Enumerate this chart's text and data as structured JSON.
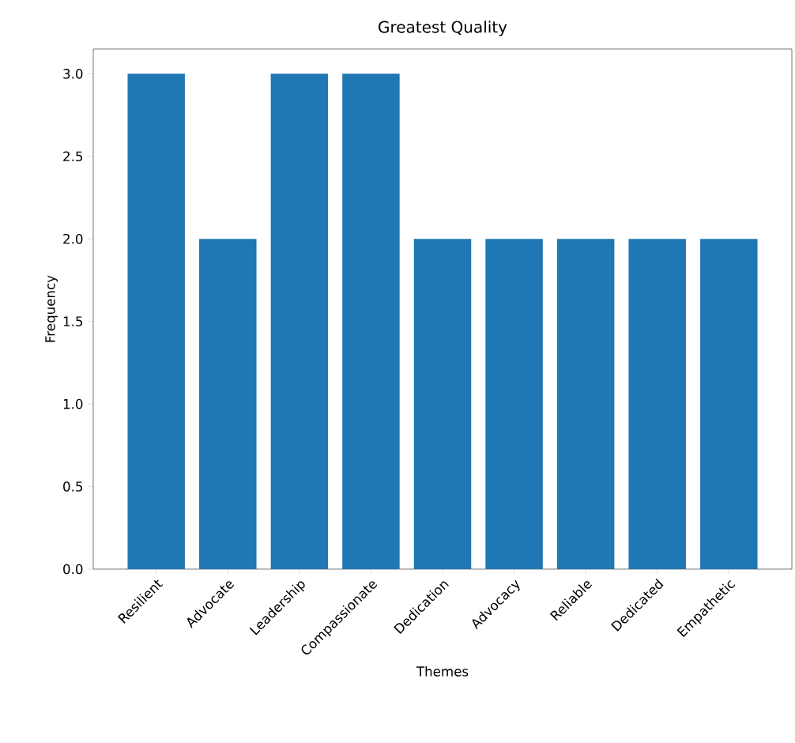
{
  "chart_data": {
    "type": "bar",
    "title": "Greatest Quality",
    "xlabel": "Themes",
    "ylabel": "Frequency",
    "categories": [
      "Resilient",
      "Advocate",
      "Leadership",
      "Compassionate",
      "Dedication",
      "Advocacy",
      "Reliable",
      "Dedicated",
      "Empathetic"
    ],
    "values": [
      3,
      2,
      3,
      3,
      2,
      2,
      2,
      2,
      2
    ],
    "color": "#1f77b4",
    "ylim": [
      0,
      3.15
    ],
    "yticks": [
      {
        "value": 0,
        "label": "0.0"
      },
      {
        "value": 0.5,
        "label": "0.5"
      },
      {
        "value": 1,
        "label": "1.0"
      },
      {
        "value": 1.5,
        "label": "1.5"
      },
      {
        "value": 2,
        "label": "2.0"
      },
      {
        "value": 2.5,
        "label": "2.5"
      },
      {
        "value": 3,
        "label": "3.0"
      }
    ]
  }
}
